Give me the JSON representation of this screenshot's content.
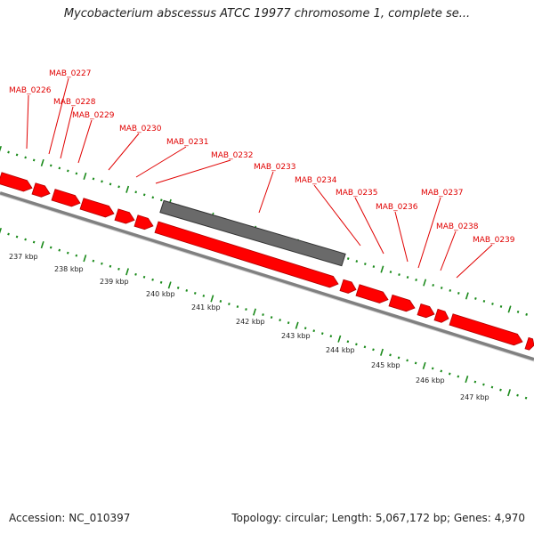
{
  "header": {
    "title": "Mycobacterium abscessus ATCC 19977 chromosome 1, complete se..."
  },
  "footer": {
    "accession": "Accession: NC_010397",
    "summary": "Topology: circular; Length: 5,067,172 bp; Genes: 4,970"
  },
  "genes": [
    {
      "id": "MAB_0226"
    },
    {
      "id": "MAB_0227"
    },
    {
      "id": "MAB_0228"
    },
    {
      "id": "MAB_0229"
    },
    {
      "id": "MAB_0230"
    },
    {
      "id": "MAB_0231"
    },
    {
      "id": "MAB_0232"
    },
    {
      "id": "MAB_0233"
    },
    {
      "id": "MAB_0234"
    },
    {
      "id": "MAB_0235"
    },
    {
      "id": "MAB_0236"
    },
    {
      "id": "MAB_0237"
    },
    {
      "id": "MAB_0238"
    },
    {
      "id": "MAB_0239"
    }
  ],
  "scale_ticks": [
    {
      "label": "237 kbp"
    },
    {
      "label": "238 kbp"
    },
    {
      "label": "239 kbp"
    },
    {
      "label": "240 kbp"
    },
    {
      "label": "241 kbp"
    },
    {
      "label": "242 kbp"
    },
    {
      "label": "243 kbp"
    },
    {
      "label": "244 kbp"
    },
    {
      "label": "245 kbp"
    },
    {
      "label": "246 kbp"
    },
    {
      "label": "247 kbp"
    }
  ],
  "colors": {
    "gene": "#ff0000",
    "gene_outline": "#b00000",
    "backbone": "#808080",
    "feature_bar": "#6a6a6a",
    "dotted_ruler": "#1a8a1a",
    "label": "#e00000"
  }
}
